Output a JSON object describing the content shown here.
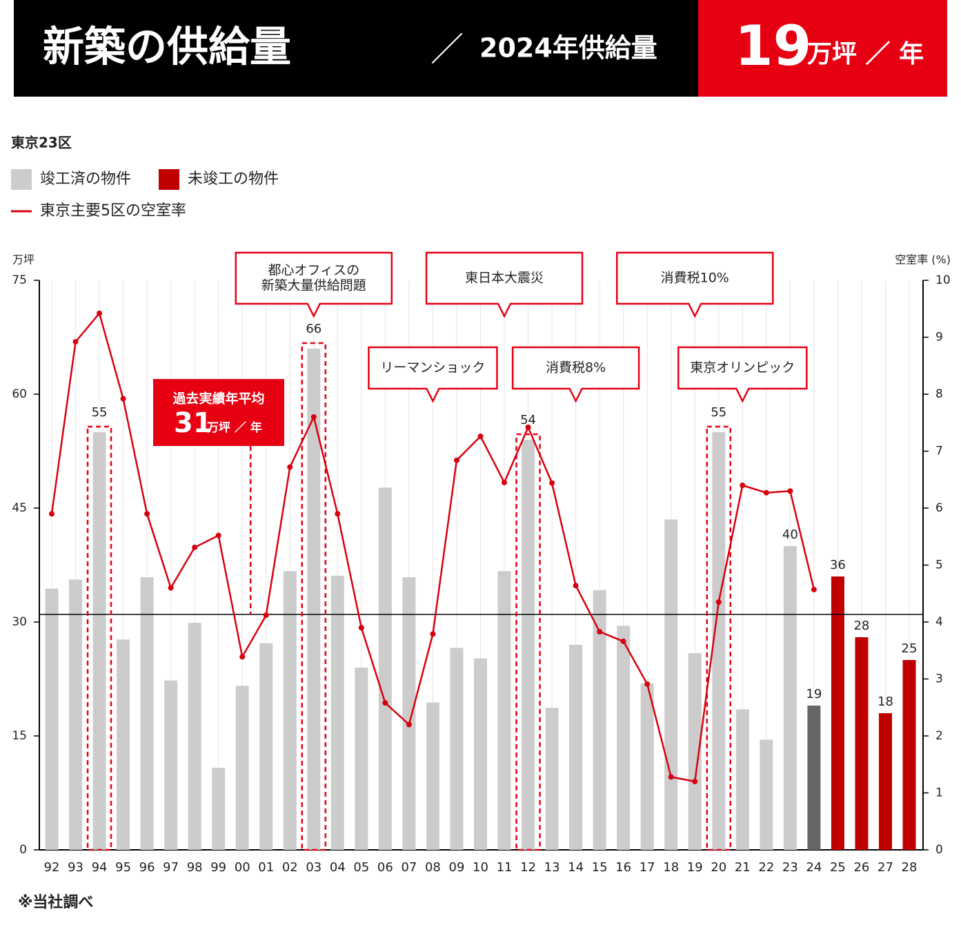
{
  "header": {
    "title": "新築の供給量",
    "slash": "／",
    "subtitle": "2024年供給量",
    "value": "19",
    "unit": "万坪 ／ 年"
  },
  "chart_data": {
    "type": "bar_line",
    "region": "東京23区",
    "ylabel": "万坪",
    "y2label": "空室率 (%)",
    "footnote": "※当社調べ",
    "categories": [
      "92",
      "93",
      "94",
      "95",
      "96",
      "97",
      "98",
      "99",
      "00",
      "01",
      "02",
      "03",
      "04",
      "05",
      "06",
      "07",
      "08",
      "09",
      "10",
      "11",
      "12",
      "13",
      "14",
      "15",
      "16",
      "17",
      "18",
      "19",
      "20",
      "21",
      "22",
      "23",
      "24",
      "25",
      "26",
      "27",
      "28"
    ],
    "ylim": [
      0,
      75
    ],
    "yticks": [
      0,
      15,
      30,
      45,
      60,
      75
    ],
    "y2lim": [
      0,
      10
    ],
    "y2ticks": [
      0,
      1,
      2,
      3,
      4,
      5,
      6,
      7,
      8,
      9,
      10
    ],
    "series": [
      {
        "name": "竣工済の物件",
        "kind": "bar",
        "color": "#cccccc",
        "highlight": {
          "category": "24",
          "color": "#666666"
        },
        "values": [
          34.4,
          35.6,
          55,
          27.7,
          35.9,
          22.3,
          29.9,
          10.8,
          21.6,
          27.2,
          36.7,
          66,
          36.1,
          24,
          47.7,
          35.9,
          19.4,
          26.6,
          25.2,
          36.7,
          54,
          18.7,
          27,
          34.2,
          29.5,
          21.9,
          43.5,
          25.9,
          55,
          18.5,
          14.5,
          40,
          19,
          null,
          null,
          null,
          null
        ],
        "value_labels": [
          null,
          null,
          "55",
          null,
          null,
          null,
          null,
          null,
          null,
          null,
          null,
          "66",
          null,
          null,
          null,
          null,
          null,
          null,
          null,
          null,
          "54",
          null,
          null,
          null,
          null,
          null,
          null,
          null,
          "55",
          null,
          null,
          "40",
          "19",
          null,
          null,
          null,
          null
        ]
      },
      {
        "name": "未竣工の物件",
        "kind": "bar",
        "color": "#c00000",
        "values": [
          null,
          null,
          null,
          null,
          null,
          null,
          null,
          null,
          null,
          null,
          null,
          null,
          null,
          null,
          null,
          null,
          null,
          null,
          null,
          null,
          null,
          null,
          null,
          null,
          null,
          null,
          null,
          null,
          null,
          null,
          null,
          null,
          null,
          36,
          28,
          18,
          25
        ],
        "value_labels": [
          null,
          null,
          null,
          null,
          null,
          null,
          null,
          null,
          null,
          null,
          null,
          null,
          null,
          null,
          null,
          null,
          null,
          null,
          null,
          null,
          null,
          null,
          null,
          null,
          null,
          null,
          null,
          null,
          null,
          null,
          null,
          null,
          null,
          "36",
          "28",
          "18",
          "25"
        ]
      },
      {
        "name": "東京主要5区の空室率",
        "kind": "line",
        "axis": "y2",
        "color": "#d7000f",
        "values": [
          5.9,
          8.92,
          9.42,
          7.92,
          5.9,
          4.6,
          5.31,
          5.52,
          3.39,
          4.12,
          6.72,
          7.6,
          5.9,
          3.9,
          2.58,
          2.2,
          3.79,
          6.84,
          7.26,
          6.45,
          7.42,
          6.44,
          4.64,
          3.83,
          3.66,
          2.91,
          1.28,
          1.2,
          4.35,
          6.4,
          6.27,
          6.3,
          4.57,
          null,
          null,
          null,
          null
        ]
      }
    ],
    "average": {
      "label": "過去実績年平均",
      "value": 31,
      "unit": "万坪 ／ 年",
      "category": "00"
    },
    "dashed_highlights": [
      "94",
      "03",
      "12",
      "20"
    ],
    "annotations": [
      {
        "text": [
          "都心オフィスの",
          "新築大量供給問題"
        ],
        "category": "03"
      },
      {
        "text": [
          "リーマンショック"
        ],
        "category": "08"
      },
      {
        "text": [
          "東日本大震災"
        ],
        "category": "11"
      },
      {
        "text": [
          "消費税8%"
        ],
        "category": "14"
      },
      {
        "text": [
          "消費税10%"
        ],
        "category": "19"
      },
      {
        "text": [
          "東京オリンピック"
        ],
        "category": "21"
      }
    ]
  }
}
